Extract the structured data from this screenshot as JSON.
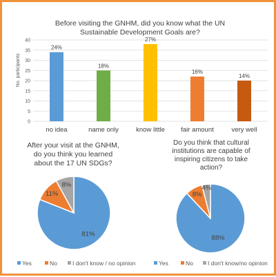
{
  "chart_data": [
    {
      "type": "bar",
      "title_lines": [
        "Before visiting the GNHM, did you know what the UN",
        "Sustainable Development Goals are?"
      ],
      "ylabel": "No. participants",
      "ylim": [
        0,
        40
      ],
      "yticks": [
        0,
        5,
        10,
        15,
        20,
        25,
        30,
        35,
        40
      ],
      "grid": true,
      "categories": [
        "no idea",
        "name only",
        "know little",
        "fair amount",
        "very well"
      ],
      "values": [
        34,
        25,
        38,
        22,
        20
      ],
      "data_labels": [
        "24%",
        "18%",
        "27%",
        "16%",
        "14%"
      ],
      "colors": [
        "#5b9bd5",
        "#70ad47",
        "#ffc000",
        "#ed7d31",
        "#c55a11"
      ]
    },
    {
      "type": "pie",
      "title_lines": [
        "After your visit at the GNHM,",
        "do you think you learned",
        "about the 17 UN SDGs?"
      ],
      "labels": [
        "Yes",
        "No",
        "I don't know / no opinion"
      ],
      "values": [
        81,
        11,
        8
      ],
      "data_labels": [
        "81%",
        "11%",
        "8%"
      ],
      "colors": [
        "#5b9bd5",
        "#ed7d31",
        "#a5a5a5"
      ],
      "legend": "bottom"
    },
    {
      "type": "pie",
      "title_lines": [
        "Do you think that cultural",
        "institutions are capable of",
        "inspiring citizens to take",
        "action?"
      ],
      "labels": [
        "Yes",
        "No",
        "I don't know/no opinion"
      ],
      "values": [
        88,
        8,
        4
      ],
      "data_labels": [
        "88%",
        "8%",
        "4%"
      ],
      "colors": [
        "#5b9bd5",
        "#ed7d31",
        "#a5a5a5"
      ],
      "legend": "bottom"
    }
  ]
}
